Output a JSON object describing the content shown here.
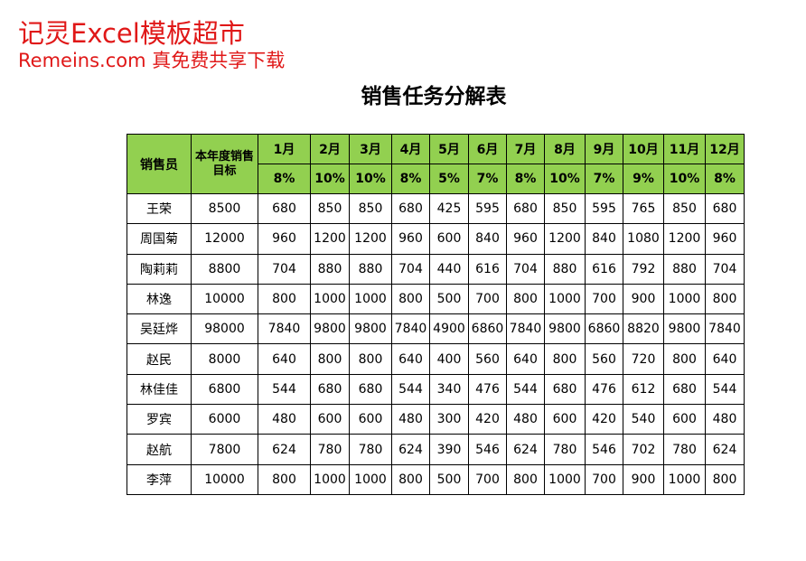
{
  "watermark": {
    "line1": "记灵Excel模板超市",
    "line2": "Remeins.com 真免费共享下载"
  },
  "title": "销售任务分解表",
  "table": {
    "name_header": "销售员",
    "target_header": "本年度销售目标",
    "months": [
      {
        "label": "1月",
        "ratio": "8%"
      },
      {
        "label": "2月",
        "ratio": "10%"
      },
      {
        "label": "3月",
        "ratio": "10%"
      },
      {
        "label": "4月",
        "ratio": "8%"
      },
      {
        "label": "5月",
        "ratio": "5%"
      },
      {
        "label": "6月",
        "ratio": "7%"
      },
      {
        "label": "7月",
        "ratio": "8%"
      },
      {
        "label": "8月",
        "ratio": "10%"
      },
      {
        "label": "9月",
        "ratio": "7%"
      },
      {
        "label": "10月",
        "ratio": "9%"
      },
      {
        "label": "11月",
        "ratio": "10%"
      },
      {
        "label": "12月",
        "ratio": "8%"
      }
    ],
    "rows": [
      [
        "王荣",
        8500,
        680,
        850,
        850,
        680,
        425,
        595,
        680,
        850,
        595,
        765,
        850,
        680
      ],
      [
        "周国菊",
        12000,
        960,
        1200,
        1200,
        960,
        600,
        840,
        960,
        1200,
        840,
        1080,
        1200,
        960
      ],
      [
        "陶莉莉",
        8800,
        704,
        880,
        880,
        704,
        440,
        616,
        704,
        880,
        616,
        792,
        880,
        704
      ],
      [
        "林逸",
        10000,
        800,
        1000,
        1000,
        800,
        500,
        700,
        800,
        1000,
        700,
        900,
        1000,
        800
      ],
      [
        "吴廷烨",
        98000,
        7840,
        9800,
        9800,
        7840,
        4900,
        6860,
        7840,
        9800,
        6860,
        8820,
        9800,
        7840
      ],
      [
        "赵民",
        8000,
        640,
        800,
        800,
        640,
        400,
        560,
        640,
        800,
        560,
        720,
        800,
        640
      ],
      [
        "林佳佳",
        6800,
        544,
        680,
        680,
        544,
        340,
        476,
        544,
        680,
        476,
        612,
        680,
        544
      ],
      [
        "罗宾",
        6000,
        480,
        600,
        600,
        480,
        300,
        420,
        480,
        600,
        420,
        540,
        600,
        480
      ],
      [
        "赵航",
        7800,
        624,
        780,
        780,
        624,
        390,
        546,
        624,
        780,
        546,
        702,
        780,
        624
      ],
      [
        "李萍",
        10000,
        800,
        1000,
        1000,
        800,
        500,
        700,
        800,
        1000,
        700,
        900,
        1000,
        800
      ]
    ]
  }
}
